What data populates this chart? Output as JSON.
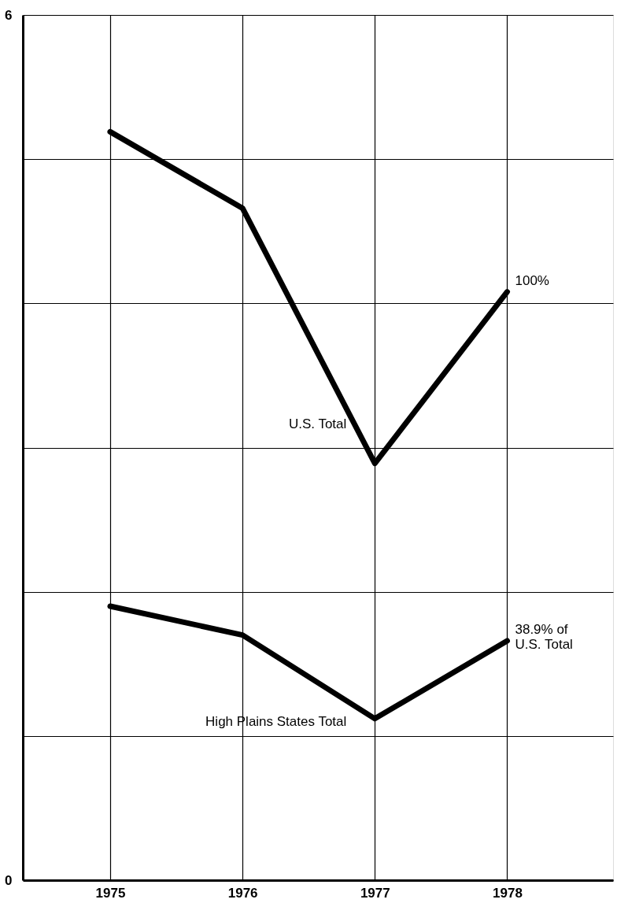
{
  "chart_data": {
    "type": "line",
    "x": [
      1975,
      1976,
      1977,
      1978
    ],
    "series": [
      {
        "name": "U.S. Total",
        "color": "#000000",
        "values": [
          5.19,
          4.66,
          2.89,
          4.08
        ]
      },
      {
        "name": "High Plains States Total",
        "color": "#000000",
        "values": [
          1.9,
          1.7,
          1.12,
          1.66
        ]
      }
    ],
    "xlim": [
      1974.34,
      1978.8
    ],
    "xticks": [
      1975,
      1976,
      1977,
      1978
    ],
    "ylim": [
      0,
      6
    ],
    "yticks": [
      0,
      {
        "value": 1,
        "label": null
      },
      {
        "value": 2,
        "label": null
      },
      {
        "value": 3,
        "label": null
      },
      {
        "value": 4,
        "label": null
      },
      {
        "value": 5,
        "label": null
      },
      6
    ],
    "annotations": [
      {
        "text": "100%",
        "x": 1978,
        "y": 4.08
      },
      {
        "text": "38.9% of\nU.S. Total",
        "x": 1978,
        "y": 1.66
      }
    ],
    "grid": true,
    "marker": "none",
    "line_style": "solid"
  }
}
